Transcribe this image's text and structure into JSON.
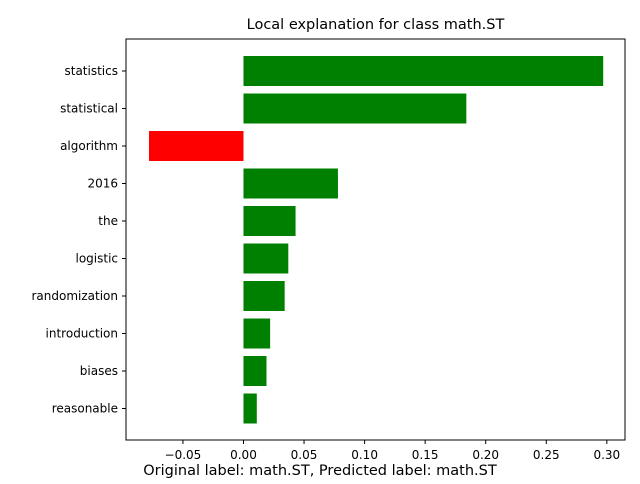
{
  "chart_data": {
    "type": "bar",
    "orientation": "horizontal",
    "title": "Local explanation for class math.ST",
    "caption": "Original label: math.ST, Predicted label: math.ST",
    "xlabel": "",
    "ylabel": "",
    "categories": [
      "statistics",
      "statistical",
      "algorithm",
      "2016",
      "the",
      "logistic",
      "randomization",
      "introduction",
      "biases",
      "reasonable"
    ],
    "values": [
      0.297,
      0.184,
      -0.078,
      0.078,
      0.043,
      0.037,
      0.034,
      0.022,
      0.019,
      0.011
    ],
    "xlim": [
      -0.097,
      0.315
    ],
    "xticks": [
      -0.05,
      0.0,
      0.05,
      0.1,
      0.15,
      0.2,
      0.25,
      0.3
    ],
    "xtick_labels": [
      "−0.05",
      "0.00",
      "0.05",
      "0.10",
      "0.15",
      "0.20",
      "0.25",
      "0.30"
    ],
    "positive_color": "#008000",
    "negative_color": "#ff0000",
    "grid": false,
    "legend": "none"
  }
}
